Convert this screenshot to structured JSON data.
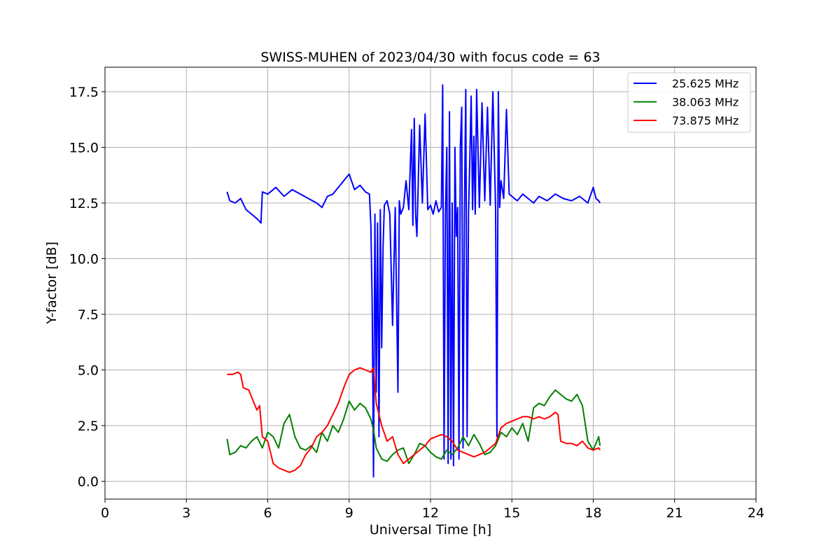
{
  "chart_data": {
    "type": "line",
    "title": "SWISS-MUHEN of 2023/04/30 with focus code = 63",
    "xlabel": "Universal Time [h]",
    "ylabel": "Y-factor [dB]",
    "xlim": [
      0,
      24
    ],
    "ylim": [
      -0.8,
      18.6
    ],
    "xticks": [
      0,
      3,
      6,
      9,
      12,
      15,
      18,
      21,
      24
    ],
    "yticks": [
      0.0,
      2.5,
      5.0,
      7.5,
      10.0,
      12.5,
      15.0,
      17.5
    ],
    "xtick_labels": [
      "0",
      "3",
      "6",
      "9",
      "12",
      "15",
      "18",
      "21",
      "24"
    ],
    "ytick_labels": [
      "0.0",
      "2.5",
      "5.0",
      "7.5",
      "10.0",
      "12.5",
      "15.0",
      "17.5"
    ],
    "grid": true,
    "legend_position": "top-right",
    "series": [
      {
        "name": "25.625 MHz",
        "color": "#0000ff",
        "x": [
          4.5,
          4.6,
          4.8,
          5.0,
          5.2,
          5.4,
          5.6,
          5.75,
          5.8,
          6.0,
          6.3,
          6.6,
          6.9,
          7.2,
          7.5,
          7.8,
          8.0,
          8.2,
          8.4,
          8.6,
          8.8,
          9.0,
          9.2,
          9.4,
          9.6,
          9.75,
          9.8,
          9.85,
          9.9,
          9.95,
          10.0,
          10.05,
          10.1,
          10.15,
          10.2,
          10.25,
          10.3,
          10.4,
          10.5,
          10.6,
          10.7,
          10.8,
          10.85,
          10.9,
          11.0,
          11.1,
          11.2,
          11.3,
          11.35,
          11.4,
          11.45,
          11.5,
          11.6,
          11.7,
          11.8,
          11.9,
          12.0,
          12.1,
          12.2,
          12.3,
          12.4,
          12.45,
          12.5,
          12.55,
          12.6,
          12.65,
          12.7,
          12.75,
          12.8,
          12.85,
          12.9,
          12.95,
          13.0,
          13.05,
          13.1,
          13.15,
          13.2,
          13.25,
          13.3,
          13.35,
          13.4,
          13.45,
          13.5,
          13.55,
          13.6,
          13.65,
          13.7,
          13.8,
          13.9,
          14.0,
          14.1,
          14.2,
          14.3,
          14.4,
          14.45,
          14.5,
          14.55,
          14.6,
          14.7,
          14.8,
          14.9,
          15.0,
          15.2,
          15.4,
          15.6,
          15.8,
          16.0,
          16.3,
          16.6,
          16.9,
          17.2,
          17.5,
          17.8,
          18.0,
          18.1,
          18.2,
          18.25
        ],
        "y": [
          13.0,
          12.6,
          12.5,
          12.7,
          12.2,
          12.0,
          11.8,
          11.6,
          13.0,
          12.9,
          13.2,
          12.8,
          13.1,
          12.9,
          12.7,
          12.5,
          12.3,
          12.8,
          12.9,
          13.2,
          13.5,
          13.8,
          13.1,
          13.3,
          13.0,
          12.9,
          11.5,
          8.0,
          0.2,
          12.0,
          4.0,
          11.6,
          2.0,
          12.2,
          6.0,
          10.5,
          12.4,
          12.6,
          12.0,
          7.0,
          12.3,
          4.0,
          12.6,
          12.0,
          12.3,
          13.5,
          12.2,
          15.8,
          11.5,
          16.3,
          12.0,
          11.0,
          16.0,
          12.5,
          16.5,
          12.2,
          12.4,
          12.0,
          12.6,
          12.1,
          12.3,
          17.8,
          1.0,
          12.0,
          15.0,
          0.8,
          16.6,
          1.0,
          12.5,
          0.7,
          15.0,
          11.0,
          12.3,
          1.0,
          15.0,
          16.8,
          1.5,
          12.0,
          17.6,
          2.0,
          12.0,
          14.5,
          17.3,
          12.2,
          15.5,
          12.0,
          17.6,
          12.3,
          17.0,
          12.6,
          16.8,
          12.4,
          17.5,
          12.2,
          2.0,
          17.5,
          12.3,
          13.5,
          12.7,
          16.7,
          12.9,
          12.8,
          12.6,
          12.9,
          12.7,
          12.5,
          12.8,
          12.6,
          12.9,
          12.7,
          12.6,
          12.8,
          12.5,
          13.2,
          12.7,
          12.6,
          12.5
        ]
      },
      {
        "name": "38.063 MHz",
        "color": "#008000",
        "x": [
          4.5,
          4.6,
          4.8,
          5.0,
          5.2,
          5.4,
          5.6,
          5.8,
          6.0,
          6.2,
          6.4,
          6.6,
          6.8,
          7.0,
          7.2,
          7.4,
          7.6,
          7.8,
          8.0,
          8.2,
          8.4,
          8.6,
          8.8,
          9.0,
          9.2,
          9.4,
          9.6,
          9.8,
          9.9,
          10.0,
          10.2,
          10.4,
          10.6,
          10.8,
          11.0,
          11.2,
          11.4,
          11.6,
          11.8,
          12.0,
          12.2,
          12.4,
          12.6,
          12.8,
          13.0,
          13.2,
          13.4,
          13.6,
          13.8,
          14.0,
          14.2,
          14.4,
          14.6,
          14.8,
          15.0,
          15.2,
          15.4,
          15.6,
          15.8,
          16.0,
          16.2,
          16.4,
          16.6,
          16.8,
          17.0,
          17.2,
          17.4,
          17.6,
          17.8,
          18.0,
          18.2,
          18.25
        ],
        "y": [
          1.9,
          1.2,
          1.3,
          1.6,
          1.5,
          1.8,
          2.0,
          1.5,
          2.2,
          2.0,
          1.5,
          2.6,
          3.0,
          2.0,
          1.5,
          1.4,
          1.6,
          1.3,
          2.2,
          1.8,
          2.5,
          2.2,
          2.8,
          3.6,
          3.2,
          3.5,
          3.3,
          2.8,
          2.3,
          1.5,
          1.0,
          0.9,
          1.2,
          1.4,
          1.5,
          0.8,
          1.2,
          1.7,
          1.6,
          1.3,
          1.1,
          1.0,
          1.4,
          1.2,
          1.5,
          2.0,
          1.6,
          2.1,
          1.7,
          1.2,
          1.3,
          1.6,
          2.2,
          2.0,
          2.4,
          2.1,
          2.6,
          1.8,
          3.3,
          3.5,
          3.4,
          3.8,
          4.1,
          3.9,
          3.7,
          3.6,
          3.9,
          3.4,
          1.8,
          1.4,
          2.0,
          1.6
        ]
      },
      {
        "name": "73.875 MHz",
        "color": "#ff0000",
        "x": [
          4.5,
          4.7,
          4.9,
          5.0,
          5.1,
          5.3,
          5.5,
          5.6,
          5.7,
          5.8,
          6.0,
          6.2,
          6.4,
          6.6,
          6.8,
          7.0,
          7.2,
          7.4,
          7.6,
          7.8,
          8.0,
          8.2,
          8.4,
          8.6,
          8.8,
          9.0,
          9.2,
          9.4,
          9.6,
          9.8,
          9.9,
          10.0,
          10.2,
          10.4,
          10.6,
          10.8,
          11.0,
          11.2,
          11.4,
          11.6,
          11.8,
          12.0,
          12.2,
          12.4,
          12.6,
          12.8,
          13.0,
          13.2,
          13.4,
          13.6,
          13.8,
          14.0,
          14.2,
          14.4,
          14.6,
          14.8,
          15.0,
          15.2,
          15.4,
          15.6,
          15.8,
          16.0,
          16.2,
          16.4,
          16.6,
          16.7,
          16.8,
          17.0,
          17.2,
          17.4,
          17.6,
          17.8,
          18.0,
          18.2,
          18.25
        ],
        "y": [
          4.8,
          4.8,
          4.9,
          4.8,
          4.2,
          4.1,
          3.5,
          3.2,
          3.4,
          2.0,
          1.8,
          0.8,
          0.6,
          0.5,
          0.4,
          0.5,
          0.7,
          1.2,
          1.5,
          2.0,
          2.2,
          2.5,
          3.0,
          3.5,
          4.2,
          4.8,
          5.0,
          5.1,
          5.0,
          4.9,
          5.1,
          3.5,
          2.5,
          1.8,
          2.0,
          1.2,
          0.8,
          1.0,
          1.2,
          1.4,
          1.6,
          1.9,
          2.0,
          2.1,
          2.0,
          1.8,
          1.4,
          1.3,
          1.2,
          1.1,
          1.2,
          1.3,
          1.5,
          1.7,
          2.4,
          2.6,
          2.7,
          2.8,
          2.9,
          2.9,
          2.8,
          2.9,
          2.8,
          2.9,
          3.1,
          3.0,
          1.8,
          1.7,
          1.7,
          1.6,
          1.8,
          1.5,
          1.4,
          1.5,
          1.4
        ]
      }
    ]
  }
}
